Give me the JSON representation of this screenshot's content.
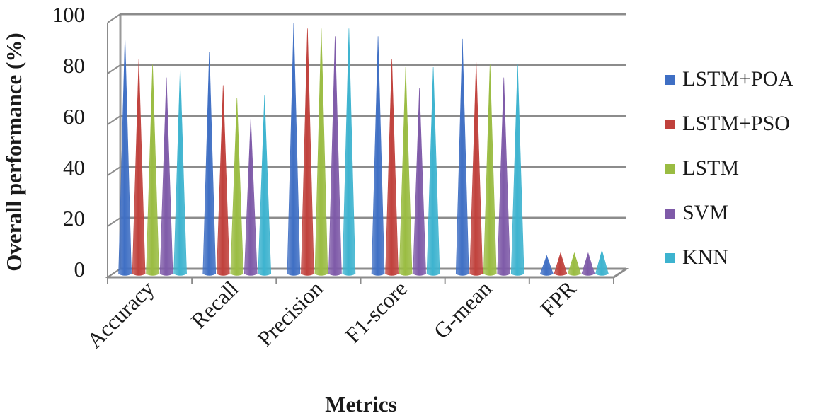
{
  "chart_data": {
    "type": "bar",
    "categories": [
      "Accuracy",
      "Recall",
      "Precision",
      "F1-score",
      "G-mean",
      "FPR"
    ],
    "series": [
      {
        "name": "LSTM+POA",
        "color": "#3f6fc4",
        "values": [
          92,
          86,
          97,
          92,
          91,
          7
        ]
      },
      {
        "name": "LSTM+PSO",
        "color": "#c0413c",
        "values": [
          83,
          73,
          95,
          83,
          82,
          8
        ]
      },
      {
        "name": "LSTM",
        "color": "#9abc42",
        "values": [
          81,
          68,
          95,
          80,
          81,
          8
        ]
      },
      {
        "name": "SVM",
        "color": "#7e5aa8",
        "values": [
          76,
          60,
          92,
          72,
          76,
          8
        ]
      },
      {
        "name": "KNN",
        "color": "#3db3cf",
        "values": [
          80,
          69,
          95,
          80,
          81,
          9
        ]
      }
    ],
    "ylabel": "Overall performance (%)",
    "xlabel": "Metrics",
    "ylim": [
      0,
      100
    ],
    "yticks": [
      0,
      20,
      40,
      60,
      80,
      100
    ],
    "grid": true,
    "legend": "right"
  }
}
